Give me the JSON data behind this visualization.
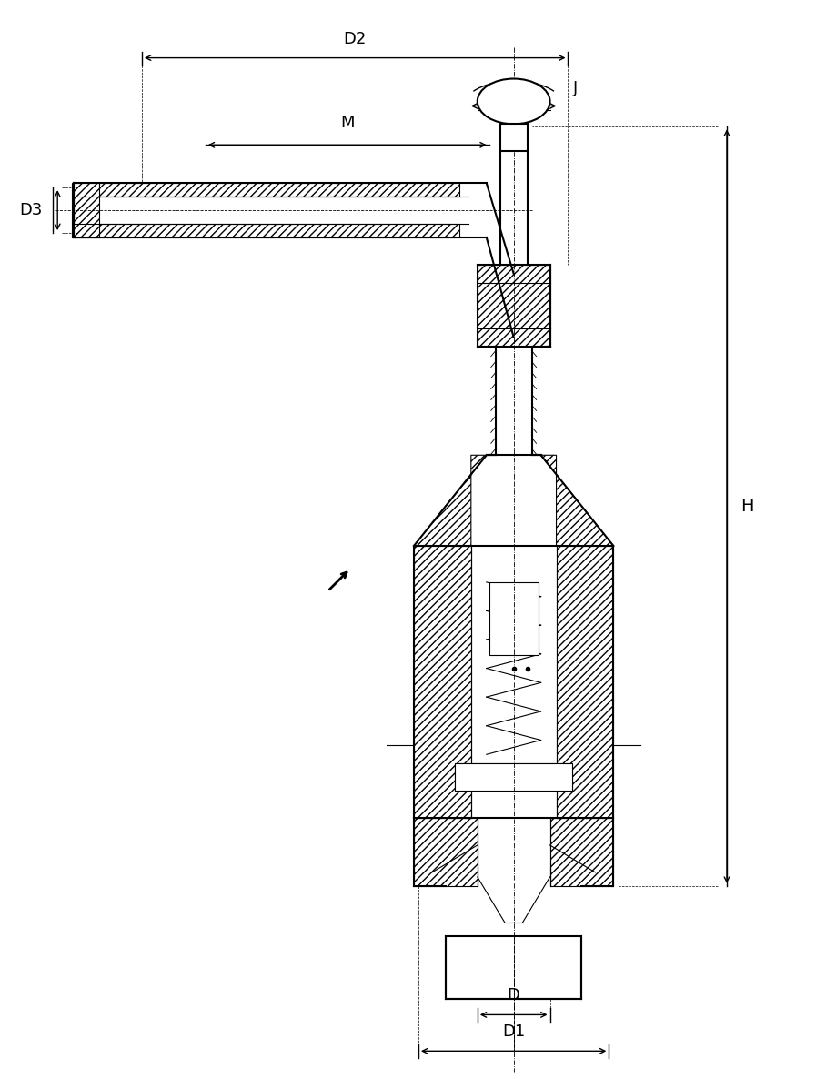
{
  "title": "",
  "bg_color": "#ffffff",
  "line_color": "#000000",
  "hatch_color": "#000000",
  "dim_labels": {
    "D1": "D1",
    "D2": "D2",
    "D3": "D3",
    "D": "D",
    "M": "M",
    "H": "H",
    "J": "J"
  },
  "font_size_dim": 13,
  "fig_width": 9.19,
  "fig_height": 11.86,
  "dpi": 100
}
